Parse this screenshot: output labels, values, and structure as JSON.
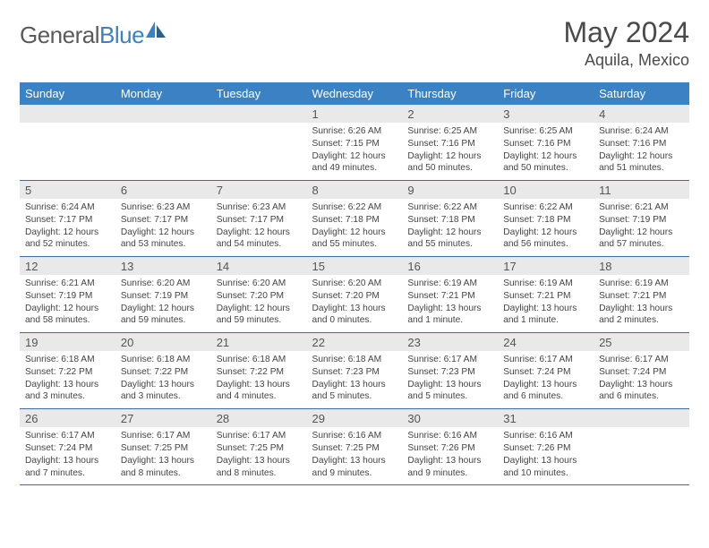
{
  "logo": {
    "text_a": "General",
    "text_b": "Blue"
  },
  "title": "May 2024",
  "location": "Aquila, Mexico",
  "colors": {
    "header_bg": "#3b82c4",
    "header_text": "#ffffff",
    "daynum_bg": "#e9e9e9",
    "week_border": "#3b6ea0",
    "body_text": "#444444",
    "title_text": "#4a4a4a"
  },
  "day_headers": [
    "Sunday",
    "Monday",
    "Tuesday",
    "Wednesday",
    "Thursday",
    "Friday",
    "Saturday"
  ],
  "weeks": [
    [
      {
        "n": "",
        "l1": "",
        "l2": "",
        "l3": "",
        "l4": ""
      },
      {
        "n": "",
        "l1": "",
        "l2": "",
        "l3": "",
        "l4": ""
      },
      {
        "n": "",
        "l1": "",
        "l2": "",
        "l3": "",
        "l4": ""
      },
      {
        "n": "1",
        "l1": "Sunrise: 6:26 AM",
        "l2": "Sunset: 7:15 PM",
        "l3": "Daylight: 12 hours",
        "l4": "and 49 minutes."
      },
      {
        "n": "2",
        "l1": "Sunrise: 6:25 AM",
        "l2": "Sunset: 7:16 PM",
        "l3": "Daylight: 12 hours",
        "l4": "and 50 minutes."
      },
      {
        "n": "3",
        "l1": "Sunrise: 6:25 AM",
        "l2": "Sunset: 7:16 PM",
        "l3": "Daylight: 12 hours",
        "l4": "and 50 minutes."
      },
      {
        "n": "4",
        "l1": "Sunrise: 6:24 AM",
        "l2": "Sunset: 7:16 PM",
        "l3": "Daylight: 12 hours",
        "l4": "and 51 minutes."
      }
    ],
    [
      {
        "n": "5",
        "l1": "Sunrise: 6:24 AM",
        "l2": "Sunset: 7:17 PM",
        "l3": "Daylight: 12 hours",
        "l4": "and 52 minutes."
      },
      {
        "n": "6",
        "l1": "Sunrise: 6:23 AM",
        "l2": "Sunset: 7:17 PM",
        "l3": "Daylight: 12 hours",
        "l4": "and 53 minutes."
      },
      {
        "n": "7",
        "l1": "Sunrise: 6:23 AM",
        "l2": "Sunset: 7:17 PM",
        "l3": "Daylight: 12 hours",
        "l4": "and 54 minutes."
      },
      {
        "n": "8",
        "l1": "Sunrise: 6:22 AM",
        "l2": "Sunset: 7:18 PM",
        "l3": "Daylight: 12 hours",
        "l4": "and 55 minutes."
      },
      {
        "n": "9",
        "l1": "Sunrise: 6:22 AM",
        "l2": "Sunset: 7:18 PM",
        "l3": "Daylight: 12 hours",
        "l4": "and 55 minutes."
      },
      {
        "n": "10",
        "l1": "Sunrise: 6:22 AM",
        "l2": "Sunset: 7:18 PM",
        "l3": "Daylight: 12 hours",
        "l4": "and 56 minutes."
      },
      {
        "n": "11",
        "l1": "Sunrise: 6:21 AM",
        "l2": "Sunset: 7:19 PM",
        "l3": "Daylight: 12 hours",
        "l4": "and 57 minutes."
      }
    ],
    [
      {
        "n": "12",
        "l1": "Sunrise: 6:21 AM",
        "l2": "Sunset: 7:19 PM",
        "l3": "Daylight: 12 hours",
        "l4": "and 58 minutes."
      },
      {
        "n": "13",
        "l1": "Sunrise: 6:20 AM",
        "l2": "Sunset: 7:19 PM",
        "l3": "Daylight: 12 hours",
        "l4": "and 59 minutes."
      },
      {
        "n": "14",
        "l1": "Sunrise: 6:20 AM",
        "l2": "Sunset: 7:20 PM",
        "l3": "Daylight: 12 hours",
        "l4": "and 59 minutes."
      },
      {
        "n": "15",
        "l1": "Sunrise: 6:20 AM",
        "l2": "Sunset: 7:20 PM",
        "l3": "Daylight: 13 hours",
        "l4": "and 0 minutes."
      },
      {
        "n": "16",
        "l1": "Sunrise: 6:19 AM",
        "l2": "Sunset: 7:21 PM",
        "l3": "Daylight: 13 hours",
        "l4": "and 1 minute."
      },
      {
        "n": "17",
        "l1": "Sunrise: 6:19 AM",
        "l2": "Sunset: 7:21 PM",
        "l3": "Daylight: 13 hours",
        "l4": "and 1 minute."
      },
      {
        "n": "18",
        "l1": "Sunrise: 6:19 AM",
        "l2": "Sunset: 7:21 PM",
        "l3": "Daylight: 13 hours",
        "l4": "and 2 minutes."
      }
    ],
    [
      {
        "n": "19",
        "l1": "Sunrise: 6:18 AM",
        "l2": "Sunset: 7:22 PM",
        "l3": "Daylight: 13 hours",
        "l4": "and 3 minutes."
      },
      {
        "n": "20",
        "l1": "Sunrise: 6:18 AM",
        "l2": "Sunset: 7:22 PM",
        "l3": "Daylight: 13 hours",
        "l4": "and 3 minutes."
      },
      {
        "n": "21",
        "l1": "Sunrise: 6:18 AM",
        "l2": "Sunset: 7:22 PM",
        "l3": "Daylight: 13 hours",
        "l4": "and 4 minutes."
      },
      {
        "n": "22",
        "l1": "Sunrise: 6:18 AM",
        "l2": "Sunset: 7:23 PM",
        "l3": "Daylight: 13 hours",
        "l4": "and 5 minutes."
      },
      {
        "n": "23",
        "l1": "Sunrise: 6:17 AM",
        "l2": "Sunset: 7:23 PM",
        "l3": "Daylight: 13 hours",
        "l4": "and 5 minutes."
      },
      {
        "n": "24",
        "l1": "Sunrise: 6:17 AM",
        "l2": "Sunset: 7:24 PM",
        "l3": "Daylight: 13 hours",
        "l4": "and 6 minutes."
      },
      {
        "n": "25",
        "l1": "Sunrise: 6:17 AM",
        "l2": "Sunset: 7:24 PM",
        "l3": "Daylight: 13 hours",
        "l4": "and 6 minutes."
      }
    ],
    [
      {
        "n": "26",
        "l1": "Sunrise: 6:17 AM",
        "l2": "Sunset: 7:24 PM",
        "l3": "Daylight: 13 hours",
        "l4": "and 7 minutes."
      },
      {
        "n": "27",
        "l1": "Sunrise: 6:17 AM",
        "l2": "Sunset: 7:25 PM",
        "l3": "Daylight: 13 hours",
        "l4": "and 8 minutes."
      },
      {
        "n": "28",
        "l1": "Sunrise: 6:17 AM",
        "l2": "Sunset: 7:25 PM",
        "l3": "Daylight: 13 hours",
        "l4": "and 8 minutes."
      },
      {
        "n": "29",
        "l1": "Sunrise: 6:16 AM",
        "l2": "Sunset: 7:25 PM",
        "l3": "Daylight: 13 hours",
        "l4": "and 9 minutes."
      },
      {
        "n": "30",
        "l1": "Sunrise: 6:16 AM",
        "l2": "Sunset: 7:26 PM",
        "l3": "Daylight: 13 hours",
        "l4": "and 9 minutes."
      },
      {
        "n": "31",
        "l1": "Sunrise: 6:16 AM",
        "l2": "Sunset: 7:26 PM",
        "l3": "Daylight: 13 hours",
        "l4": "and 10 minutes."
      },
      {
        "n": "",
        "l1": "",
        "l2": "",
        "l3": "",
        "l4": ""
      }
    ]
  ]
}
